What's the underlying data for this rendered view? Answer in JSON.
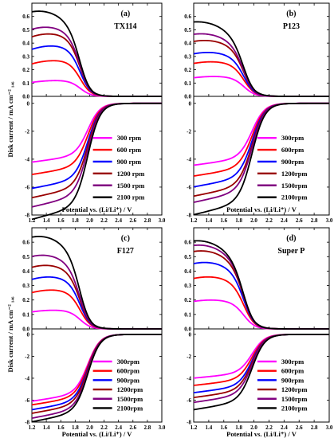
{
  "chart_data": [
    {
      "type": "line",
      "panel_label": "(a)",
      "sample": "TX114",
      "xlabel": "Potential vs. (Li/Li⁺) / V",
      "ylabel": "Disk current / mA cm⁻² ₁₄₆",
      "xlim": [
        1.2,
        3.0
      ],
      "x_ticks": [
        "1.2",
        "1.4",
        "1.6",
        "1.8",
        "2.0",
        "2.2",
        "2.4",
        "2.6",
        "2.8",
        "3.0"
      ],
      "top": {
        "ylim": [
          0,
          0.7
        ],
        "y_ticks": [
          "0.0",
          "0.1",
          "0.2",
          "0.3",
          "0.4",
          "0.5",
          "0.6"
        ]
      },
      "bottom": {
        "ylim": [
          -8,
          0.5
        ],
        "y_ticks": [
          "-8",
          "-6",
          "-4",
          "-2",
          "0"
        ]
      },
      "legend_position": "bottom-right",
      "series": [
        {
          "name": "300 rpm",
          "color": "#ff00ff",
          "ring_peak": 0.12,
          "ring_peak_x": 1.6,
          "disk_low": -3.8
        },
        {
          "name": "600 rpm",
          "color": "#ff0000",
          "ring_peak": 0.27,
          "ring_peak_x": 1.55,
          "disk_low": -4.6
        },
        {
          "name": "900 rpm",
          "color": "#0000ff",
          "ring_peak": 0.38,
          "ring_peak_x": 1.5,
          "disk_low": -5.5
        },
        {
          "name": "1200 rpm",
          "color": "#990000",
          "ring_peak": 0.47,
          "ring_peak_x": 1.45,
          "disk_low": -6.1
        },
        {
          "name": "1500 rpm",
          "color": "#800080",
          "ring_peak": 0.52,
          "ring_peak_x": 1.4,
          "disk_low": -6.7
        },
        {
          "name": "2100 rpm",
          "color": "#000000",
          "ring_peak": 0.64,
          "ring_peak_x": 1.3,
          "disk_low": -7.5
        }
      ]
    },
    {
      "type": "line",
      "panel_label": "(b)",
      "sample": "P123",
      "xlabel": "Potential vs. (Li/Li⁺) / V",
      "ylabel": "",
      "xlim": [
        1.2,
        3.0
      ],
      "x_ticks": [
        "1.2",
        "1.4",
        "1.6",
        "1.8",
        "2.0",
        "2.2",
        "2.4",
        "2.6",
        "2.8",
        "3.0"
      ],
      "top": {
        "ylim": [
          0,
          0.7
        ],
        "y_ticks": [
          "0.0",
          "0.1",
          "0.2",
          "0.3",
          "0.4",
          "0.5",
          "0.6"
        ]
      },
      "bottom": {
        "ylim": [
          -8,
          0.5
        ],
        "y_ticks": [
          "-8",
          "-6",
          "-4",
          "-2",
          "0"
        ]
      },
      "legend_position": "bottom-right",
      "series": [
        {
          "name": "300rpm",
          "color": "#ff00ff",
          "ring_peak": 0.15,
          "ring_peak_x": 1.5,
          "disk_low": -4.0
        },
        {
          "name": "600rpm",
          "color": "#ff0000",
          "ring_peak": 0.26,
          "ring_peak_x": 1.45,
          "disk_low": -4.7
        },
        {
          "name": "900rpm",
          "color": "#0000ff",
          "ring_peak": 0.33,
          "ring_peak_x": 1.4,
          "disk_low": -5.4
        },
        {
          "name": "1200rpm",
          "color": "#990000",
          "ring_peak": 0.42,
          "ring_peak_x": 1.35,
          "disk_low": -6.0
        },
        {
          "name": "1500rpm",
          "color": "#800080",
          "ring_peak": 0.47,
          "ring_peak_x": 1.3,
          "disk_low": -6.4
        },
        {
          "name": "2100rpm",
          "color": "#000000",
          "ring_peak": 0.56,
          "ring_peak_x": 1.25,
          "disk_low": -7.2
        }
      ]
    },
    {
      "type": "line",
      "panel_label": "(c)",
      "sample": "F127",
      "xlabel": "Potential vs. (Li/Li⁺) / V",
      "ylabel": "Disk current / mA cm⁻² ₁₄₆",
      "xlim": [
        1.2,
        3.0
      ],
      "x_ticks": [
        "1.2",
        "1.4",
        "1.6",
        "1.8",
        "2.0",
        "2.2",
        "2.4",
        "2.6",
        "2.8",
        "3.0"
      ],
      "top": {
        "ylim": [
          0,
          0.7
        ],
        "y_ticks": [
          "0.0",
          "0.1",
          "0.2",
          "0.3",
          "0.4",
          "0.5",
          "0.6"
        ]
      },
      "bottom": {
        "ylim": [
          -8,
          0.5
        ],
        "y_ticks": [
          "-8",
          "-6",
          "-4",
          "-2",
          "0"
        ]
      },
      "legend_position": "bottom-right",
      "series": [
        {
          "name": "300rpm",
          "color": "#ff00ff",
          "ring_peak": 0.13,
          "ring_peak_x": 1.55,
          "disk_low": -5.5
        },
        {
          "name": "600rpm",
          "color": "#ff0000",
          "ring_peak": 0.27,
          "ring_peak_x": 1.5,
          "disk_low": -5.8
        },
        {
          "name": "900rpm",
          "color": "#0000ff",
          "ring_peak": 0.36,
          "ring_peak_x": 1.45,
          "disk_low": -6.2
        },
        {
          "name": "1200rpm",
          "color": "#990000",
          "ring_peak": 0.44,
          "ring_peak_x": 1.4,
          "disk_low": -6.5
        },
        {
          "name": "1500rpm",
          "color": "#800080",
          "ring_peak": 0.51,
          "ring_peak_x": 1.35,
          "disk_low": -6.9
        },
        {
          "name": "2100rpm",
          "color": "#000000",
          "ring_peak": 0.64,
          "ring_peak_x": 1.3,
          "disk_low": -7.2
        }
      ]
    },
    {
      "type": "line",
      "panel_label": "(d)",
      "sample": "Super P",
      "xlabel": "Potential vs. (Li/Li⁺) / V",
      "ylabel": "",
      "xlim": [
        1.2,
        3.0
      ],
      "x_ticks": [
        "1.2",
        "1.4",
        "1.6",
        "1.8",
        "2.0",
        "2.2",
        "2.4",
        "2.6",
        "2.8",
        "3.0"
      ],
      "top": {
        "ylim": [
          0,
          0.7
        ],
        "y_ticks": [
          "0.0",
          "0.1",
          "0.2",
          "0.3",
          "0.4",
          "0.5",
          "0.6"
        ]
      },
      "bottom": {
        "ylim": [
          -8,
          0.5
        ],
        "y_ticks": [
          "-8",
          "-6",
          "-4",
          "-2",
          "0"
        ]
      },
      "legend_position": "bottom-right",
      "series": [
        {
          "name": "300rpm",
          "color": "#ff00ff",
          "ring_peak": 0.2,
          "ring_peak_x": 1.45,
          "disk_low": -3.6
        },
        {
          "name": "600rpm",
          "color": "#ff0000",
          "ring_peak": 0.36,
          "ring_peak_x": 1.4,
          "disk_low": -4.2
        },
        {
          "name": "900rpm",
          "color": "#0000ff",
          "ring_peak": 0.46,
          "ring_peak_x": 1.35,
          "disk_low": -4.8
        },
        {
          "name": "1200rpm",
          "color": "#990000",
          "ring_peak": 0.54,
          "ring_peak_x": 1.3,
          "disk_low": -5.2
        },
        {
          "name": "1500rpm",
          "color": "#800080",
          "ring_peak": 0.58,
          "ring_peak_x": 1.27,
          "disk_low": -5.6
        },
        {
          "name": "2100rpm",
          "color": "#000000",
          "ring_peak": 0.61,
          "ring_peak_x": 1.25,
          "disk_low": -6.2
        }
      ]
    }
  ]
}
